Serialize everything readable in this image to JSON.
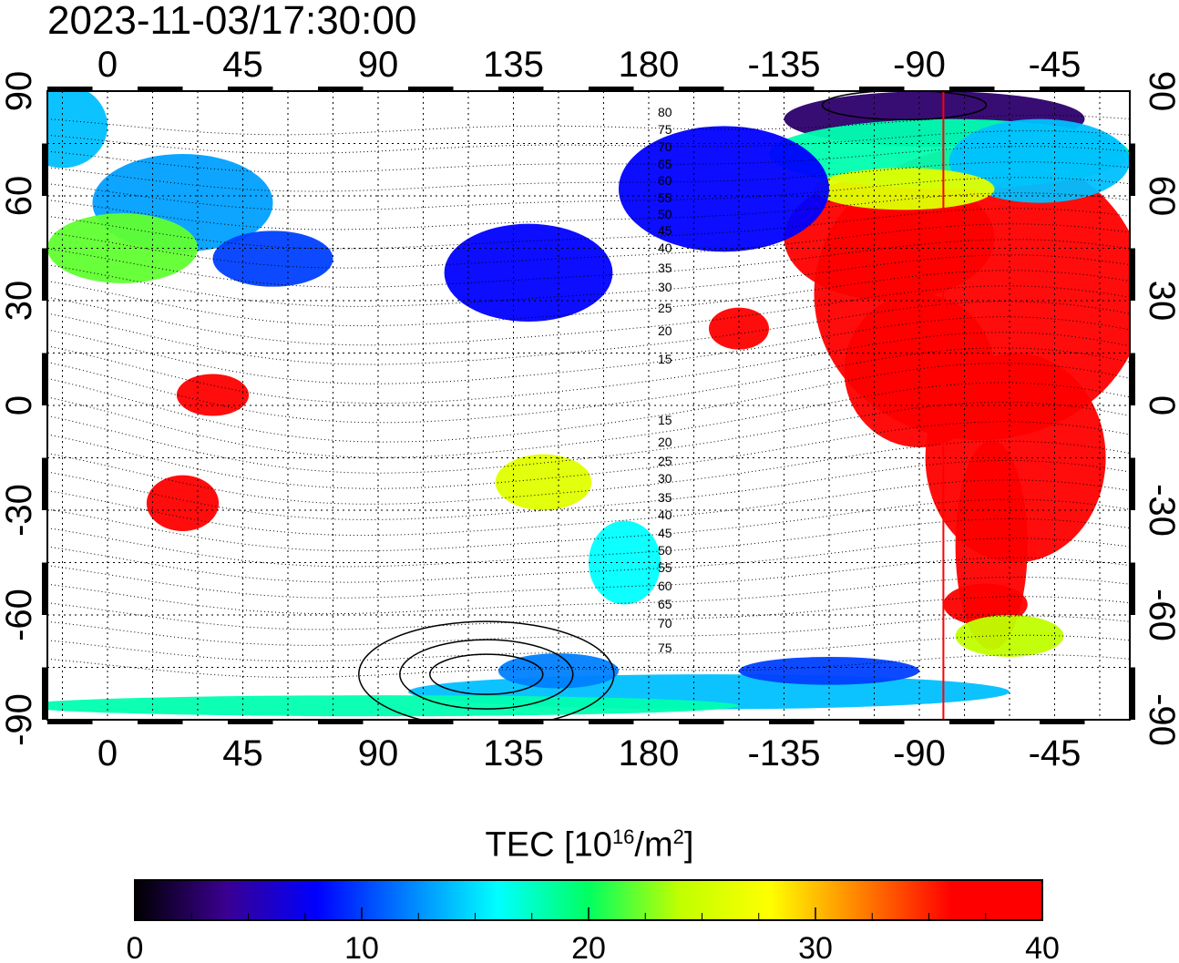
{
  "timestamp": "2023-11-03/17:30:00",
  "map": {
    "top_axis_labels": [
      "0",
      "45",
      "90",
      "135",
      "180",
      "-135",
      "-90",
      "-45"
    ],
    "bottom_axis_labels": [
      "0",
      "45",
      "90",
      "135",
      "180",
      "-135",
      "-90",
      "-45"
    ],
    "left_axis_labels": [
      "90",
      "60",
      "30",
      "0",
      "-30",
      "-60",
      "-90"
    ],
    "right_axis_labels": [
      "90",
      "60",
      "30",
      "0",
      "-30",
      "-60",
      "-90"
    ],
    "upper_mlat_labels": [
      "80",
      "75",
      "70",
      "65",
      "60",
      "55",
      "50",
      "45",
      "40",
      "35",
      "30",
      "25",
      "20",
      "15"
    ],
    "lower_mlat_labels": [
      "15",
      "20",
      "25",
      "30",
      "35",
      "40",
      "45",
      "50",
      "55",
      "60",
      "65",
      "70",
      "75"
    ],
    "lon_min": -20,
    "lon_max": 340,
    "lat_min": -90,
    "lat_max": 90,
    "terminator_lon": -82,
    "terminator_color": "#ff0000",
    "grid": "dotted"
  },
  "colorbar": {
    "title_prefix": "TEC  [10",
    "title_exp": "16",
    "title_mid": "/m",
    "title_exp2": "2",
    "title_suffix": "]",
    "min": 0,
    "max": 40,
    "tick_labels": [
      "0",
      "10",
      "20",
      "30",
      "40"
    ],
    "stops": [
      "#000000",
      "#3a0090",
      "#0000ff",
      "#0080ff",
      "#00ffff",
      "#00ff60",
      "#c0ff00",
      "#ffff00",
      "#ff8000",
      "#ff0000",
      "#ff0000"
    ]
  },
  "tec_regions": [
    {
      "lon": -70,
      "lat": 32,
      "w": 55,
      "h": 42,
      "tec": 40
    },
    {
      "lon": -100,
      "lat": 48,
      "w": 35,
      "h": 18,
      "tec": 40
    },
    {
      "lon": -90,
      "lat": 10,
      "w": 25,
      "h": 22,
      "tec": 40
    },
    {
      "lon": -58,
      "lat": -15,
      "w": 30,
      "h": 30,
      "tec": 40
    },
    {
      "lon": -66,
      "lat": -40,
      "w": 12,
      "h": 30,
      "tec": 40
    },
    {
      "lon": -68,
      "lat": -57,
      "w": 14,
      "h": 6,
      "tec": 38
    },
    {
      "lon": -60,
      "lat": -66,
      "w": 18,
      "h": 6,
      "tec": 24
    },
    {
      "lon": -85,
      "lat": 82,
      "w": 50,
      "h": 8,
      "tec": 3
    },
    {
      "lon": -80,
      "lat": 72,
      "w": 60,
      "h": 10,
      "tec": 18
    },
    {
      "lon": -50,
      "lat": 70,
      "w": 30,
      "h": 12,
      "tec": 14
    },
    {
      "lon": -95,
      "lat": 62,
      "w": 30,
      "h": 6,
      "tec": 26
    },
    {
      "lon": -155,
      "lat": 62,
      "w": 35,
      "h": 18,
      "tec": 8
    },
    {
      "lon": -150,
      "lat": 22,
      "w": 10,
      "h": 6,
      "tec": 40
    },
    {
      "lon": 140,
      "lat": 38,
      "w": 28,
      "h": 14,
      "tec": 8
    },
    {
      "lon": 25,
      "lat": 58,
      "w": 30,
      "h": 14,
      "tec": 13
    },
    {
      "lon": 5,
      "lat": 45,
      "w": 25,
      "h": 10,
      "tec": 22
    },
    {
      "lon": 55,
      "lat": 42,
      "w": 20,
      "h": 8,
      "tec": 10
    },
    {
      "lon": -15,
      "lat": 80,
      "w": 15,
      "h": 12,
      "tec": 14
    },
    {
      "lon": 25,
      "lat": -28,
      "w": 12,
      "h": 8,
      "tec": 40
    },
    {
      "lon": 35,
      "lat": 3,
      "w": 12,
      "h": 6,
      "tec": 38
    },
    {
      "lon": 145,
      "lat": -22,
      "w": 16,
      "h": 8,
      "tec": 26
    },
    {
      "lon": 172,
      "lat": -45,
      "w": 12,
      "h": 12,
      "tec": 16
    },
    {
      "lon": 200,
      "lat": -82,
      "w": 100,
      "h": 5,
      "tec": 14
    },
    {
      "lon": 90,
      "lat": -86,
      "w": 120,
      "h": 3,
      "tec": 18
    },
    {
      "lon": 150,
      "lat": -76,
      "w": 20,
      "h": 5,
      "tec": 12
    },
    {
      "lon": 240,
      "lat": -76,
      "w": 30,
      "h": 4,
      "tec": 10
    }
  ]
}
